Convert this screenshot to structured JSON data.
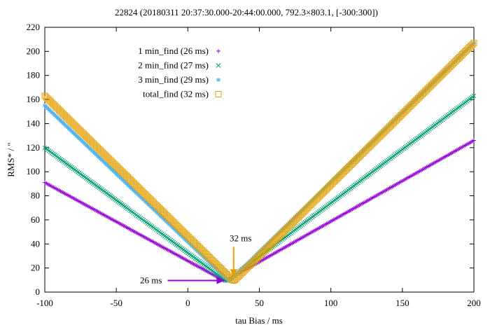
{
  "chart_data": {
    "type": "scatter",
    "title": "22824 (20180311 20:37:30.000-20:44:00.000, 792.3×803.1, [-300:300])",
    "xlabel": "tau Bias / ms",
    "ylabel": "RMS* / ″",
    "xlim": [
      -100,
      200
    ],
    "ylim": [
      0,
      220
    ],
    "xticks": [
      -100,
      -50,
      0,
      50,
      100,
      150,
      200
    ],
    "yticks": [
      0,
      20,
      40,
      60,
      80,
      100,
      120,
      140,
      160,
      180,
      200,
      220
    ],
    "x_step": 1,
    "legend_position": "top-left",
    "series": [
      {
        "name": "1 min_find (26 ms)",
        "marker": "plus",
        "color": "#9400d3",
        "minimum_at": 26,
        "anchors": [
          [
            -100,
            91
          ],
          [
            26,
            9
          ],
          [
            200,
            126
          ]
        ]
      },
      {
        "name": "2 min_find (27 ms)",
        "marker": "cross",
        "color": "#009e73",
        "minimum_at": 27,
        "anchors": [
          [
            -100,
            120
          ],
          [
            27,
            9
          ],
          [
            200,
            163
          ]
        ]
      },
      {
        "name": "3 min_find (29 ms)",
        "marker": "star",
        "color": "#56b4e9",
        "minimum_at": 29,
        "anchors": [
          [
            -100,
            155
          ],
          [
            29,
            9
          ],
          [
            200,
            207
          ]
        ]
      },
      {
        "name": "total_find (32 ms)",
        "marker": "square",
        "color": "#e69f00",
        "minimum_at": 32,
        "anchors": [
          [
            -100,
            163
          ],
          [
            32,
            9
          ],
          [
            200,
            207
          ]
        ]
      }
    ],
    "annotations": [
      {
        "text": "26 ms",
        "color": "#9400d3",
        "target": [
          26,
          9
        ],
        "direction": "from-left"
      },
      {
        "text": "32 ms",
        "color": "#e69f00",
        "target": [
          32,
          12
        ],
        "direction": "from-above"
      }
    ]
  }
}
